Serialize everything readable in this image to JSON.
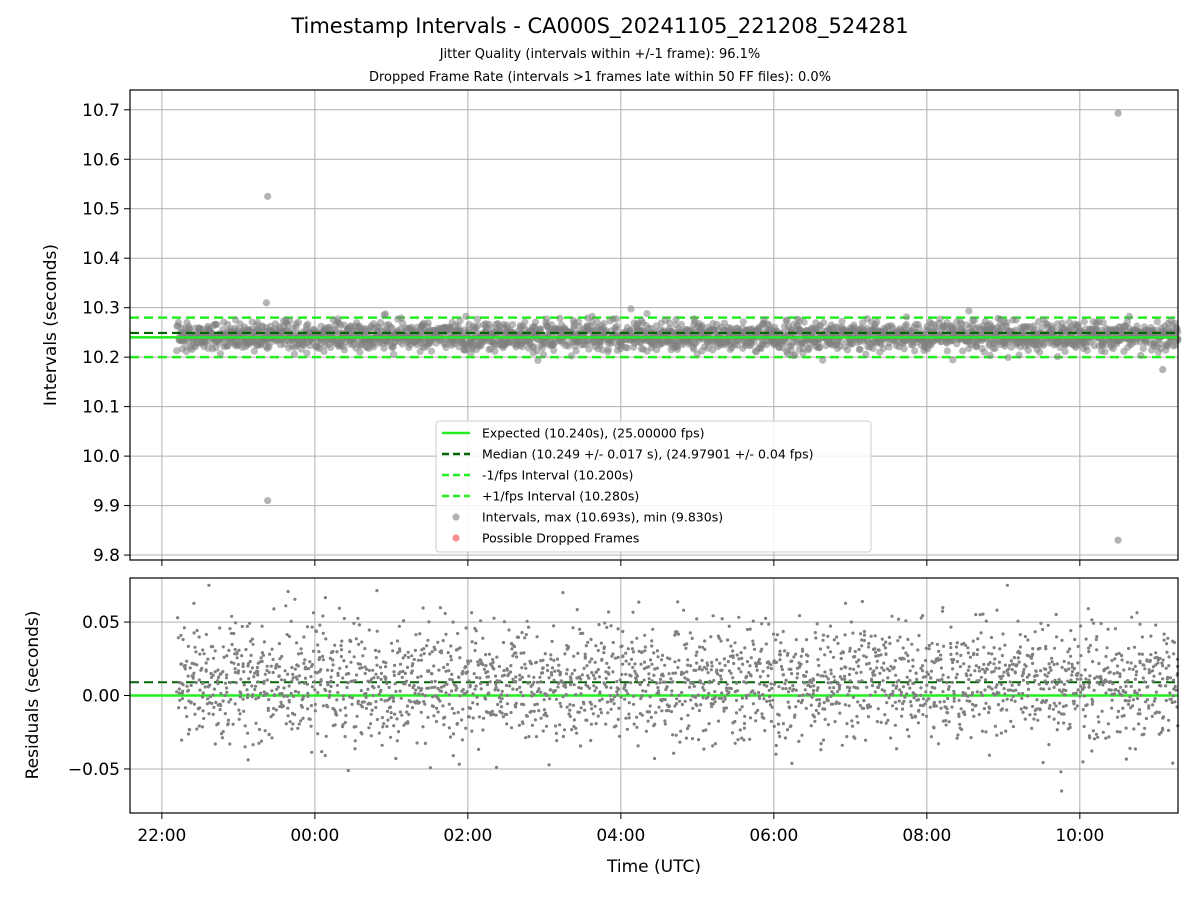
{
  "figure": {
    "title": "Timestamp Intervals - CA000S_20241105_221208_524281",
    "subtitle_1": "Jitter Quality (intervals within +/-1 frame): 96.1%",
    "subtitle_2": "Dropped Frame Rate (intervals >1 frames late within 50 FF files): 0.0%"
  },
  "colors": {
    "expected": "#22ee22",
    "median": "#006400",
    "bounds": "#22ee22",
    "points": "#808080",
    "dropped": "#ff4444",
    "grid": "#b0b0b0"
  },
  "chart_data": [
    {
      "type": "scatter",
      "panel": "top",
      "xlabel": "",
      "ylabel": "Intervals (seconds)",
      "ylim": [
        9.79,
        10.74
      ],
      "yticks": [
        9.8,
        9.9,
        10.0,
        10.1,
        10.2,
        10.3,
        10.4,
        10.5,
        10.6,
        10.7
      ],
      "ytick_labels": [
        "9.8",
        "9.9",
        "10.0",
        "10.1",
        "10.2",
        "10.3",
        "10.4",
        "10.5",
        "10.6",
        "10.7"
      ],
      "x_start": "2024-11-05 22:12",
      "x_end": "2024-11-06 11:17",
      "expected": 10.24,
      "median": 10.249,
      "minus_one": 10.2,
      "plus_one": 10.28,
      "band": {
        "center": 10.242,
        "spread": 0.027,
        "min": 10.185,
        "max": 10.305
      },
      "outliers": [
        {
          "x": "2024-11-05 23:23",
          "y": 10.525
        },
        {
          "x": "2024-11-05 23:23",
          "y": 9.91
        },
        {
          "x": "2024-11-05 23:22",
          "y": 10.31
        },
        {
          "x": "2024-11-06 10:30",
          "y": 10.693
        },
        {
          "x": "2024-11-06 10:30",
          "y": 9.83
        },
        {
          "x": "2024-11-06 11:05",
          "y": 10.175
        }
      ],
      "grid": true,
      "legend": {
        "placement": "lower center",
        "entries": [
          {
            "label": "Expected (10.240s), (25.00000 fps)",
            "style": "solid",
            "color": "#22ee22"
          },
          {
            "label": "Median (10.249 +/- 0.017 s), (24.97901 +/- 0.04 fps)",
            "style": "dashed",
            "color": "#006400"
          },
          {
            "label": "-1/fps Interval (10.200s)",
            "style": "dashed",
            "color": "#22ee22"
          },
          {
            "label": "+1/fps Interval (10.280s)",
            "style": "dashed",
            "color": "#22ee22"
          },
          {
            "label": "Intervals, max (10.693s), min (9.830s)",
            "style": "marker",
            "color": "#808080"
          },
          {
            "label": "Possible Dropped Frames",
            "style": "marker",
            "color": "#ff4444"
          }
        ]
      }
    },
    {
      "type": "scatter",
      "panel": "bottom",
      "xlabel": "Time (UTC)",
      "ylabel": "Residuals (seconds)",
      "ylim": [
        -0.08,
        0.08
      ],
      "yticks": [
        -0.05,
        0.0,
        0.05
      ],
      "ytick_labels": [
        "−0.05",
        "0.00",
        "0.05"
      ],
      "xticks": [
        "22:00",
        "00:00",
        "02:00",
        "04:00",
        "06:00",
        "08:00",
        "10:00"
      ],
      "xlim": [
        "2024-11-05 21:35",
        "2024-11-06 11:17"
      ],
      "zero_line": 0.0,
      "median_residual": 0.009,
      "residual_spread": 0.02,
      "residual_range": [
        -0.065,
        0.075
      ],
      "grid": true
    }
  ]
}
